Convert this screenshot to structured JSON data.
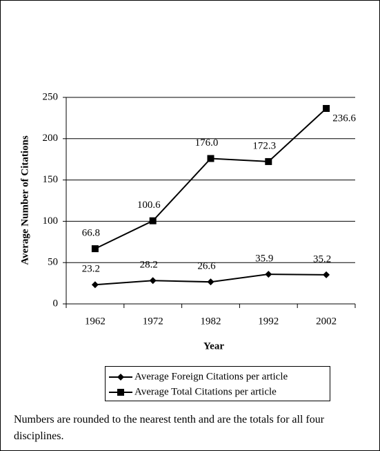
{
  "chart_data": {
    "type": "line",
    "categories": [
      "1962",
      "1972",
      "1982",
      "1992",
      "2002"
    ],
    "series": [
      {
        "name": "Average Foreign Citations per article",
        "color": "#000000",
        "marker": "diamond",
        "values": [
          23.2,
          28.2,
          26.6,
          35.9,
          35.2
        ],
        "value_labels": [
          "23.2",
          "28.2",
          "26.6",
          "35.9",
          "35.2"
        ]
      },
      {
        "name": "Average Total Citations per article",
        "color": "#000000",
        "marker": "square",
        "values": [
          66.8,
          100.6,
          176,
          172.3,
          236.6
        ],
        "value_labels": [
          "66.8",
          "100.6",
          "176.0",
          "172.3",
          "236.6"
        ]
      }
    ],
    "xlabel": "Year",
    "ylabel": "Average Number of Citations",
    "ylim": [
      0,
      250
    ],
    "yticks": [
      0,
      50,
      100,
      150,
      200,
      250
    ],
    "grid": true,
    "legend": "bottom"
  },
  "note": "Numbers are rounded to the nearest tenth and are the totals for all four disciplines."
}
